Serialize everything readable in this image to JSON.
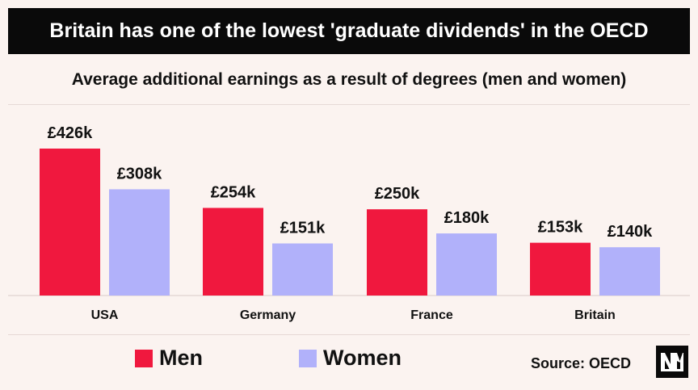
{
  "header": {
    "title": "Britain has one of the lowest 'graduate dividends' in the OECD"
  },
  "chart_data": {
    "type": "bar",
    "title": "Average additional earnings as a result of degrees (men and women)",
    "categories": [
      "USA",
      "Germany",
      "France",
      "Britain"
    ],
    "series": [
      {
        "name": "Men",
        "values": [
          426,
          254,
          250,
          153
        ],
        "labels": [
          "£426k",
          "£254k",
          "£250k",
          "£153k"
        ],
        "color": "#f0183e"
      },
      {
        "name": "Women",
        "values": [
          308,
          151,
          180,
          140
        ],
        "labels": [
          "£308k",
          "£151k",
          "£180k",
          "£140k"
        ],
        "color": "#b1b1fa"
      }
    ],
    "ylim": [
      0,
      426
    ],
    "grid": false,
    "legend_position": "bottom-left"
  },
  "footer": {
    "source": "Source: OECD",
    "logo": "NM"
  }
}
